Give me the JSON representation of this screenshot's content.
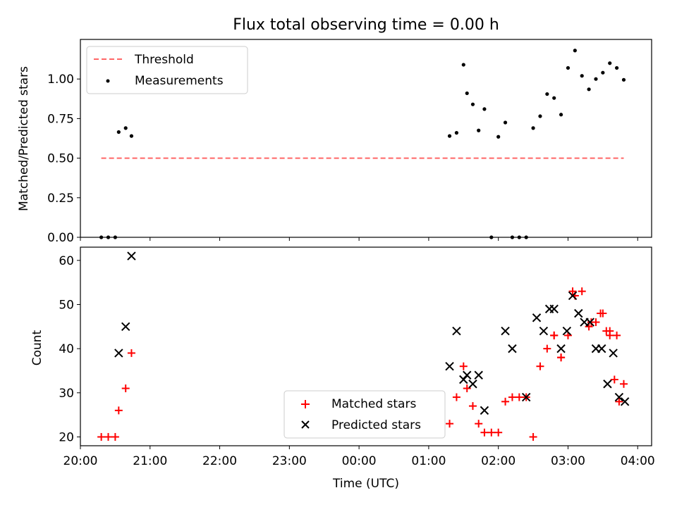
{
  "chart_data": [
    {
      "type": "scatter",
      "title": "Flux total observing time = 0.00 h",
      "ylabel": "Matched/Predicted stars",
      "xlabel": "",
      "x_axis": "time",
      "ylim": [
        0,
        1.25
      ],
      "yticks": [
        "0.00",
        "0.25",
        "0.50",
        "0.75",
        "1.00"
      ],
      "ytick_values": [
        0,
        0.25,
        0.5,
        0.75,
        1.0
      ],
      "legend_position": "upper-left",
      "threshold": {
        "name": "Threshold",
        "value": 0.5,
        "x_start": "20:18",
        "x_end": "03:48",
        "color": "#ff6666",
        "style": "dashed"
      },
      "series": [
        {
          "name": "Measurements",
          "color": "#000000",
          "marker": "dot",
          "x": [
            "20:18",
            "20:24",
            "20:30",
            "20:33",
            "20:39",
            "20:44",
            "01:18",
            "01:24",
            "01:30",
            "01:33",
            "01:38",
            "01:43",
            "01:48",
            "01:54",
            "02:00",
            "02:06",
            "02:12",
            "02:18",
            "02:24",
            "02:30",
            "02:36",
            "02:42",
            "02:48",
            "02:54",
            "03:00",
            "03:06",
            "03:12",
            "03:18",
            "03:24",
            "03:30",
            "03:36",
            "03:42",
            "03:48"
          ],
          "y": [
            0.0,
            0.0,
            0.0,
            0.665,
            0.69,
            0.64,
            0.64,
            0.66,
            1.09,
            0.91,
            0.84,
            0.675,
            0.81,
            0.0,
            0.635,
            0.725,
            0.0,
            0.0,
            0.0,
            0.69,
            0.765,
            0.905,
            0.88,
            0.775,
            1.07,
            1.18,
            1.02,
            0.935,
            1.0,
            1.04,
            1.1,
            1.07,
            0.995
          ]
        }
      ]
    },
    {
      "type": "scatter",
      "xlabel": "Time (UTC)",
      "ylabel": "Count",
      "x_axis": "time",
      "xlim": [
        "20:00",
        "04:12"
      ],
      "xticks": [
        "20:00",
        "21:00",
        "22:00",
        "23:00",
        "00:00",
        "01:00",
        "02:00",
        "03:00",
        "04:00"
      ],
      "ylim": [
        18,
        63
      ],
      "yticks": [
        20,
        30,
        40,
        50,
        60
      ],
      "legend_position": "lower-center",
      "series": [
        {
          "name": "Matched stars",
          "color": "#ff0000",
          "marker": "plus",
          "x": [
            "20:18",
            "20:24",
            "20:30",
            "20:33",
            "20:39",
            "20:44",
            "01:18",
            "01:24",
            "01:30",
            "01:33",
            "01:38",
            "01:43",
            "01:48",
            "01:54",
            "02:00",
            "02:06",
            "02:12",
            "02:18",
            "02:24",
            "02:30",
            "02:36",
            "02:42",
            "02:48",
            "02:54",
            "03:00",
            "03:06",
            "03:12",
            "03:18",
            "03:24",
            "03:30",
            "03:36",
            "03:42",
            "03:48",
            "02:48",
            "02:54",
            "03:04",
            "03:20",
            "03:28",
            "03:33",
            "03:36",
            "03:40",
            "03:44"
          ],
          "y": [
            20,
            20,
            20,
            26,
            31,
            39,
            23,
            29,
            36,
            31,
            27,
            23,
            21,
            21,
            21,
            28,
            29,
            29,
            29,
            20,
            36,
            40,
            43,
            38,
            43,
            52,
            53,
            45,
            46,
            48,
            44,
            43,
            32,
            43,
            38,
            53,
            46,
            48,
            44,
            43,
            33,
            28
          ]
        },
        {
          "name": "Predicted stars",
          "color": "#000000",
          "marker": "x",
          "x": [
            "20:33",
            "20:39",
            "20:44",
            "01:18",
            "01:24",
            "01:30",
            "01:33",
            "01:38",
            "01:43",
            "01:48",
            "02:06",
            "02:12",
            "02:24",
            "02:33",
            "02:39",
            "02:44",
            "02:48",
            "02:54",
            "02:59",
            "03:04",
            "03:09",
            "03:14",
            "03:19",
            "03:24",
            "03:29",
            "03:34",
            "03:39",
            "03:44",
            "03:49"
          ],
          "y": [
            39,
            45,
            61,
            36,
            44,
            33,
            34,
            32,
            34,
            26,
            44,
            40,
            29,
            47,
            44,
            49,
            49,
            40,
            44,
            52,
            48,
            46,
            46,
            40,
            40,
            32,
            39,
            29,
            28
          ]
        }
      ]
    }
  ]
}
